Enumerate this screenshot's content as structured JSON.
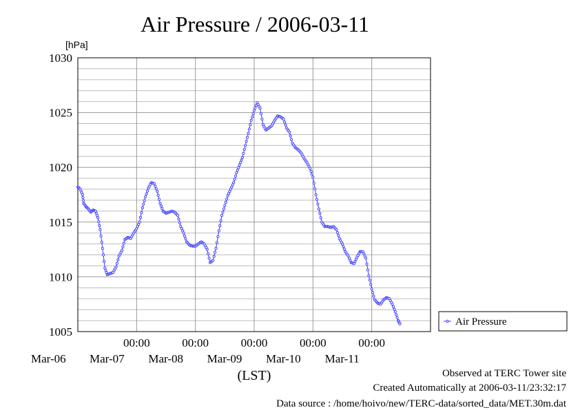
{
  "chart_data": {
    "type": "line",
    "title": "Air Pressure / 2006-03-11",
    "unit_label": "[hPa]",
    "xlabel": "(LST)",
    "ylim": [
      1005,
      1030
    ],
    "xlim": [
      0,
      6
    ],
    "y_ticks": [
      1005,
      1010,
      1015,
      1020,
      1025,
      1030
    ],
    "x_ticks": [
      {
        "x": 1,
        "time": "00:00",
        "date": "Mar-07"
      },
      {
        "x": 2,
        "time": "00:00",
        "date": "Mar-08"
      },
      {
        "x": 3,
        "time": "00:00",
        "date": "Mar-09"
      },
      {
        "x": 4,
        "time": "00:00",
        "date": "Mar-10"
      },
      {
        "x": 5,
        "time": "00:00",
        "date": "Mar-11"
      }
    ],
    "first_date_label": "Mar-06",
    "grid": true,
    "legend_position": "right",
    "series": [
      {
        "name": "Air Pressure",
        "color": "#3a3aff",
        "points": [
          [
            0.0,
            1018.2
          ],
          [
            0.04,
            1018.0
          ],
          [
            0.08,
            1017.5
          ],
          [
            0.1,
            1016.7
          ],
          [
            0.14,
            1016.4
          ],
          [
            0.18,
            1016.2
          ],
          [
            0.22,
            1015.9
          ],
          [
            0.26,
            1016.1
          ],
          [
            0.3,
            1016.0
          ],
          [
            0.34,
            1015.4
          ],
          [
            0.38,
            1014.3
          ],
          [
            0.42,
            1012.6
          ],
          [
            0.46,
            1010.8
          ],
          [
            0.5,
            1010.2
          ],
          [
            0.55,
            1010.3
          ],
          [
            0.6,
            1010.4
          ],
          [
            0.65,
            1010.9
          ],
          [
            0.7,
            1011.9
          ],
          [
            0.75,
            1012.4
          ],
          [
            0.8,
            1013.4
          ],
          [
            0.85,
            1013.6
          ],
          [
            0.9,
            1013.5
          ],
          [
            0.95,
            1014.0
          ],
          [
            1.0,
            1014.4
          ],
          [
            1.05,
            1015.0
          ],
          [
            1.1,
            1016.3
          ],
          [
            1.15,
            1017.3
          ],
          [
            1.2,
            1018.1
          ],
          [
            1.25,
            1018.6
          ],
          [
            1.3,
            1018.5
          ],
          [
            1.35,
            1017.8
          ],
          [
            1.4,
            1016.7
          ],
          [
            1.45,
            1016.0
          ],
          [
            1.5,
            1015.8
          ],
          [
            1.55,
            1015.9
          ],
          [
            1.6,
            1016.0
          ],
          [
            1.65,
            1015.9
          ],
          [
            1.7,
            1015.6
          ],
          [
            1.75,
            1014.6
          ],
          [
            1.8,
            1014.0
          ],
          [
            1.85,
            1013.2
          ],
          [
            1.9,
            1012.9
          ],
          [
            1.95,
            1012.8
          ],
          [
            2.0,
            1012.8
          ],
          [
            2.05,
            1013.0
          ],
          [
            2.1,
            1013.2
          ],
          [
            2.15,
            1013.0
          ],
          [
            2.2,
            1012.5
          ],
          [
            2.25,
            1011.3
          ],
          [
            2.3,
            1011.5
          ],
          [
            2.35,
            1012.6
          ],
          [
            2.4,
            1014.2
          ],
          [
            2.45,
            1015.6
          ],
          [
            2.5,
            1016.5
          ],
          [
            2.55,
            1017.4
          ],
          [
            2.6,
            1018.0
          ],
          [
            2.65,
            1018.6
          ],
          [
            2.7,
            1019.5
          ],
          [
            2.75,
            1020.2
          ],
          [
            2.8,
            1020.9
          ],
          [
            2.85,
            1022.0
          ],
          [
            2.9,
            1023.1
          ],
          [
            2.95,
            1024.3
          ],
          [
            3.0,
            1025.2
          ],
          [
            3.05,
            1025.9
          ],
          [
            3.1,
            1025.4
          ],
          [
            3.15,
            1023.9
          ],
          [
            3.2,
            1023.4
          ],
          [
            3.25,
            1023.6
          ],
          [
            3.3,
            1023.8
          ],
          [
            3.35,
            1024.3
          ],
          [
            3.4,
            1024.7
          ],
          [
            3.45,
            1024.6
          ],
          [
            3.5,
            1024.4
          ],
          [
            3.55,
            1023.6
          ],
          [
            3.6,
            1023.2
          ],
          [
            3.65,
            1022.2
          ],
          [
            3.7,
            1021.8
          ],
          [
            3.75,
            1021.6
          ],
          [
            3.8,
            1021.3
          ],
          [
            3.85,
            1020.8
          ],
          [
            3.9,
            1020.4
          ],
          [
            3.95,
            1019.9
          ],
          [
            4.0,
            1019.1
          ],
          [
            4.05,
            1017.5
          ],
          [
            4.1,
            1016.2
          ],
          [
            4.15,
            1015.0
          ],
          [
            4.2,
            1014.6
          ],
          [
            4.25,
            1014.6
          ],
          [
            4.3,
            1014.5
          ],
          [
            4.35,
            1014.6
          ],
          [
            4.4,
            1014.3
          ],
          [
            4.45,
            1013.5
          ],
          [
            4.5,
            1013.0
          ],
          [
            4.55,
            1012.3
          ],
          [
            4.6,
            1011.9
          ],
          [
            4.65,
            1011.3
          ],
          [
            4.7,
            1011.2
          ],
          [
            4.75,
            1011.8
          ],
          [
            4.8,
            1012.3
          ],
          [
            4.85,
            1012.3
          ],
          [
            4.9,
            1011.7
          ],
          [
            4.95,
            1010.1
          ],
          [
            5.0,
            1008.9
          ],
          [
            5.05,
            1007.9
          ],
          [
            5.1,
            1007.6
          ],
          [
            5.15,
            1007.5
          ],
          [
            5.2,
            1007.9
          ],
          [
            5.25,
            1008.1
          ],
          [
            5.3,
            1008.0
          ],
          [
            5.35,
            1007.5
          ],
          [
            5.4,
            1006.8
          ],
          [
            5.45,
            1006.0
          ],
          [
            5.48,
            1005.7
          ]
        ]
      }
    ]
  },
  "footer": {
    "site": "Observed at TERC Tower site",
    "created": "Created Automatically at 2006-03-11/23:32:17",
    "source": "Data source : /home/hoivo/new/TERC-data/sorted_data/MET.30m.dat"
  }
}
